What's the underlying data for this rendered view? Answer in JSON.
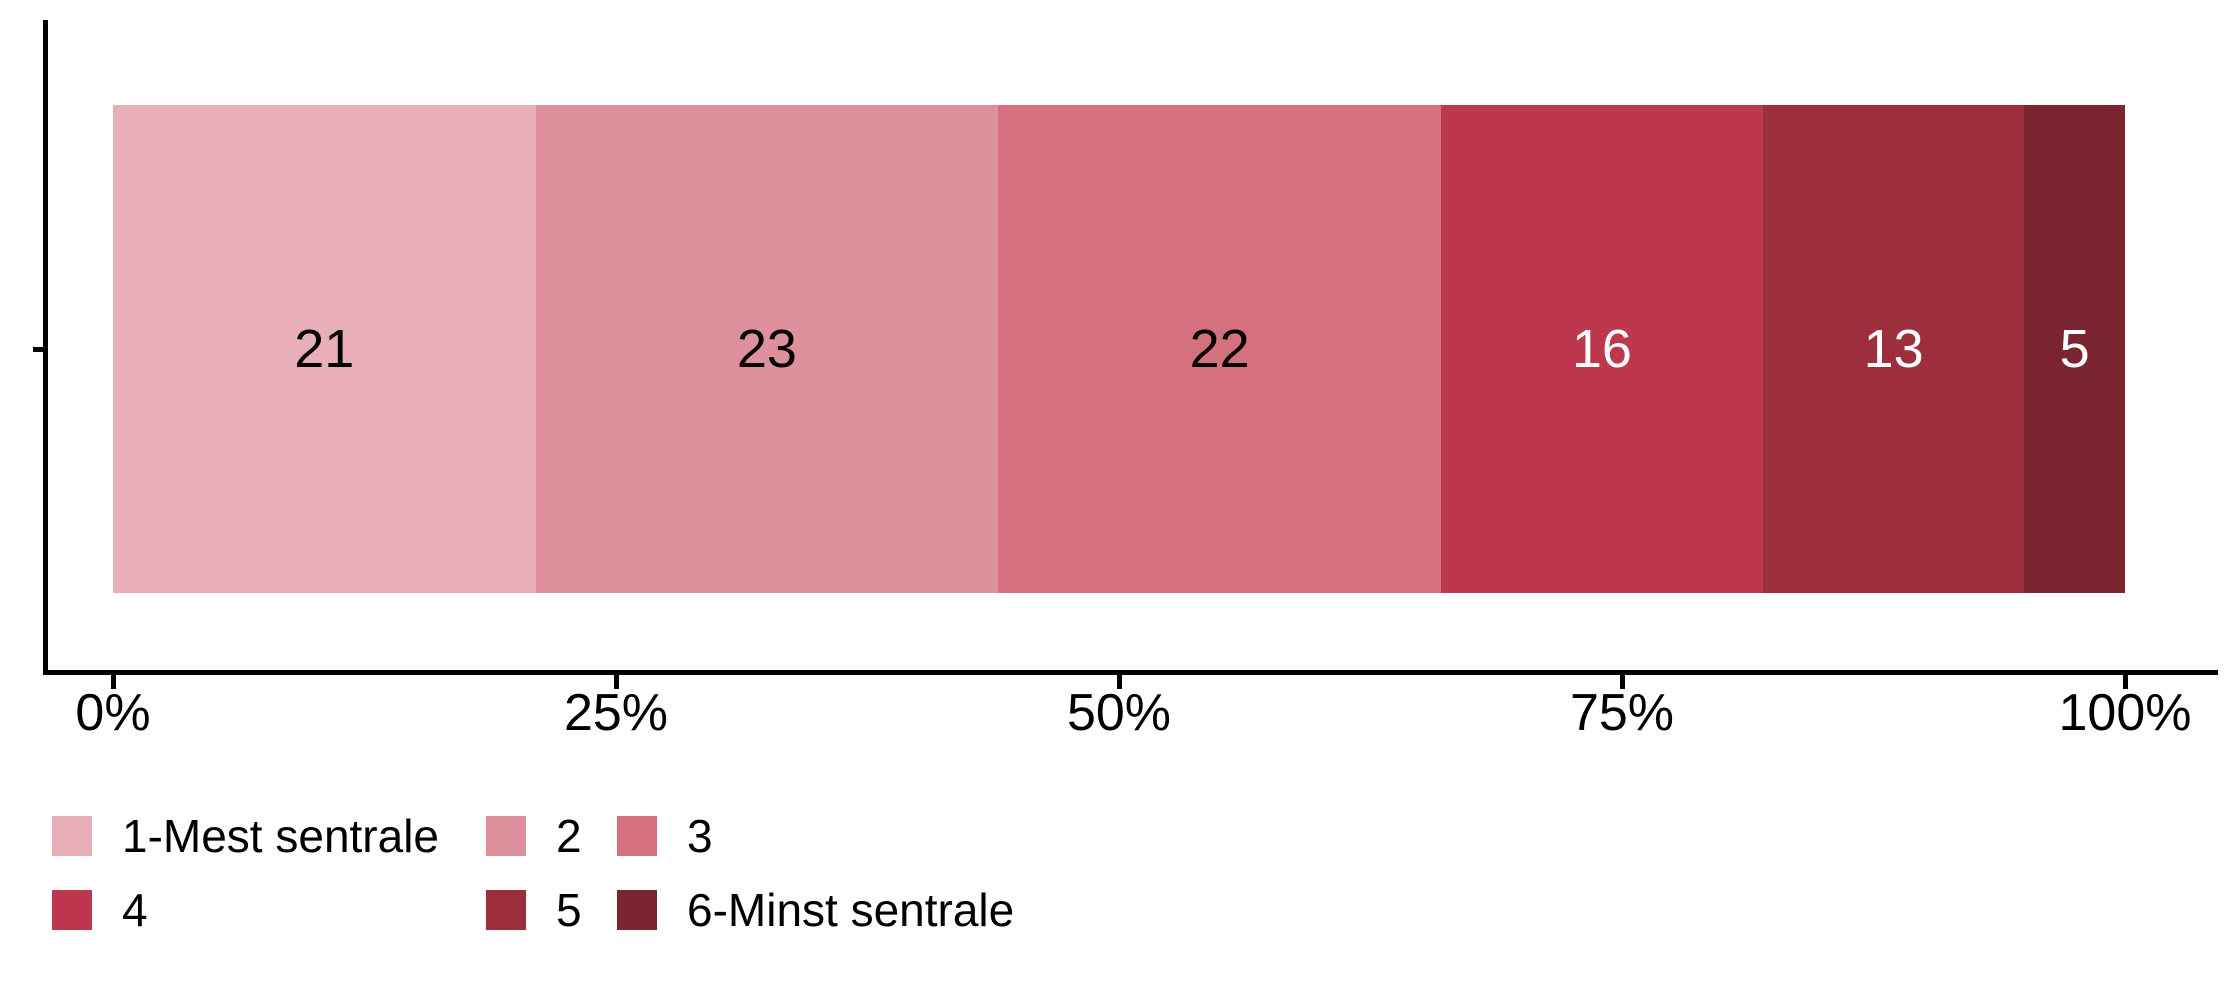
{
  "chart_data": {
    "type": "bar",
    "orientation": "horizontal",
    "stacked": true,
    "title": "",
    "xlabel": "",
    "ylabel": "",
    "values_are_percent": true,
    "categories": [
      ""
    ],
    "series": [
      {
        "name": "1-Mest sentrale",
        "value": 21,
        "color": "#E8AFB9",
        "label_color": "#000000"
      },
      {
        "name": "2",
        "value": 23,
        "color": "#DE909D",
        "label_color": "#000000"
      },
      {
        "name": "3",
        "value": 22,
        "color": "#D5707E",
        "label_color": "#000000"
      },
      {
        "name": "4",
        "value": 16,
        "color": "#BD384C",
        "label_color": "#FFFFFF"
      },
      {
        "name": "5",
        "value": 13,
        "color": "#9D2E3C",
        "label_color": "#FFFFFF"
      },
      {
        "name": "6-Minst sentrale",
        "value": 5,
        "color": "#7B2530",
        "label_color": "#FFFFFF"
      }
    ],
    "x_axis": {
      "range": [
        0,
        100
      ],
      "tick_values": [
        0,
        25,
        50,
        75,
        100
      ],
      "tick_labels": [
        "0%",
        "25%",
        "50%",
        "75%",
        "100%"
      ]
    },
    "legend": {
      "position": "bottom-left",
      "rows": [
        [
          "1-Mest sentrale",
          "2",
          "3"
        ],
        [
          "4",
          "5",
          "6-Minst sentrale"
        ]
      ]
    },
    "axis_color": "#000000"
  }
}
